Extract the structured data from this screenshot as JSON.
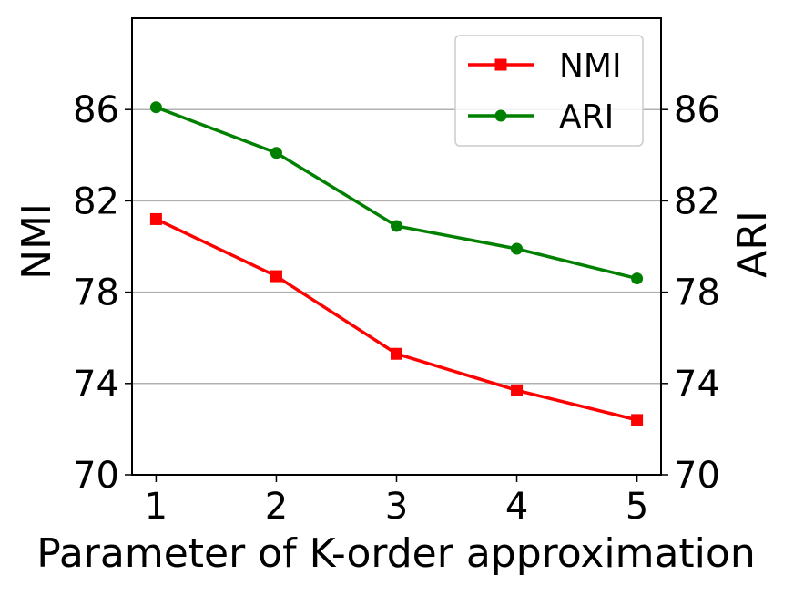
{
  "chart_data": {
    "type": "line",
    "title": "",
    "xlabel": "Parameter of K-order approximation",
    "ylabel_left": "NMI",
    "ylabel_right": "ARI",
    "x": [
      1,
      2,
      3,
      4,
      5
    ],
    "xlim": [
      0.8,
      5.2
    ],
    "ylim_left": [
      70,
      90
    ],
    "ylim_right": [
      70,
      90
    ],
    "yticks": [
      70,
      74,
      78,
      82,
      86
    ],
    "grid": "horizontal",
    "legend_position": "top-right",
    "series": [
      {
        "name": "NMI",
        "axis": "left",
        "color": "#ff0000",
        "marker": "square",
        "values": [
          81.2,
          78.7,
          75.3,
          73.7,
          72.4
        ]
      },
      {
        "name": "ARI",
        "axis": "right",
        "color": "#008000",
        "marker": "circle",
        "values": [
          86.1,
          84.1,
          80.9,
          79.9,
          78.6
        ]
      }
    ]
  }
}
